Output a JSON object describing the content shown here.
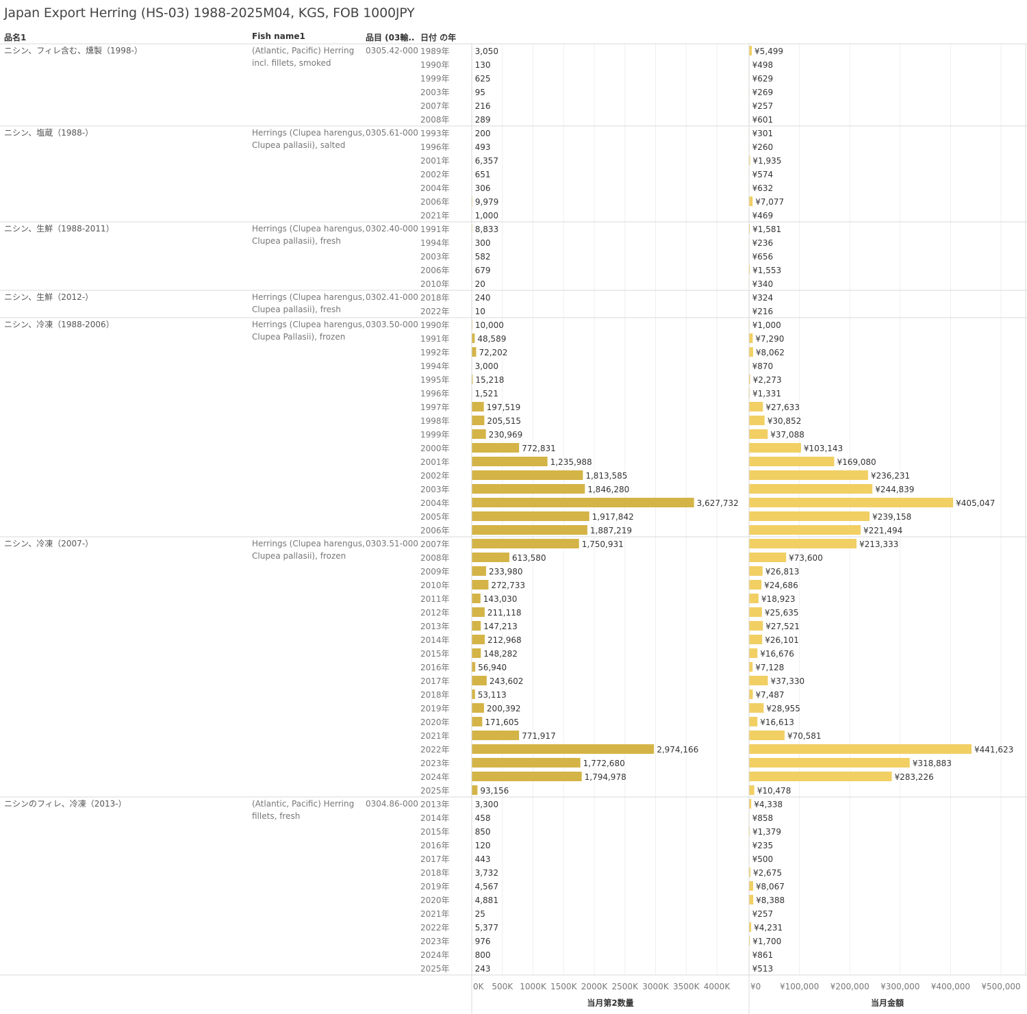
{
  "title": "Japan Export Herring (HS-03) 1988-2025M04, KGS, FOB 1000JPY",
  "headers": {
    "col1": "品名1",
    "col2": "Fish name1",
    "col3": "品目 (03輸..",
    "col4": "日付 の年"
  },
  "colors": {
    "qty_bar": "#d4b447",
    "val_bar": "#f1cf63",
    "grid": "#efefef",
    "divider": "#d9d9d9"
  },
  "chart_data": {
    "type": "bar",
    "orientation": "horizontal",
    "x_axis_qty": {
      "label": "当月第2数量",
      "ticks": [
        "0K",
        "500K",
        "1000K",
        "1500K",
        "2000K",
        "2500K",
        "3000K",
        "3500K",
        "4000K"
      ],
      "tick_values": [
        0,
        500000,
        1000000,
        1500000,
        2000000,
        2500000,
        3000000,
        3500000,
        4000000
      ]
    },
    "x_axis_val": {
      "label": "当月金額",
      "ticks": [
        "¥0",
        "¥100,000",
        "¥200,000",
        "¥300,000",
        "¥400,000",
        "¥500,000"
      ],
      "tick_values": [
        0,
        100000,
        200000,
        300000,
        400000,
        500000
      ]
    },
    "groups": [
      {
        "name_jp": "ニシン、フィレ含む、燻製（1998-）",
        "name_en": [
          "(Atlantic, Pacific) Herring",
          "incl. fillets, smoked"
        ],
        "code": "0305.42-000",
        "rows": [
          {
            "year": "1989年",
            "qty": 3050,
            "val": 5499
          },
          {
            "year": "1990年",
            "qty": 130,
            "val": 498
          },
          {
            "year": "1999年",
            "qty": 625,
            "val": 629
          },
          {
            "year": "2003年",
            "qty": 95,
            "val": 269
          },
          {
            "year": "2007年",
            "qty": 216,
            "val": 257
          },
          {
            "year": "2008年",
            "qty": 289,
            "val": 601
          }
        ]
      },
      {
        "name_jp": "ニシン、塩蔵（1988-）",
        "name_en": [
          "Herrings (Clupea harengus,",
          "Clupea pallasii), salted"
        ],
        "code": "0305.61-000",
        "rows": [
          {
            "year": "1993年",
            "qty": 200,
            "val": 301
          },
          {
            "year": "1996年",
            "qty": 493,
            "val": 260
          },
          {
            "year": "2001年",
            "qty": 6357,
            "val": 1935
          },
          {
            "year": "2002年",
            "qty": 651,
            "val": 574
          },
          {
            "year": "2004年",
            "qty": 306,
            "val": 632
          },
          {
            "year": "2006年",
            "qty": 9979,
            "val": 7077
          },
          {
            "year": "2021年",
            "qty": 1000,
            "val": 469
          }
        ]
      },
      {
        "name_jp": "ニシン、生鮮（1988-2011）",
        "name_en": [
          "Herrings (Clupea harengus,",
          "Clupea pallasii), fresh"
        ],
        "code": "0302.40-000",
        "rows": [
          {
            "year": "1991年",
            "qty": 8833,
            "val": 1581
          },
          {
            "year": "1994年",
            "qty": 300,
            "val": 236
          },
          {
            "year": "2003年",
            "qty": 582,
            "val": 656
          },
          {
            "year": "2006年",
            "qty": 679,
            "val": 1553
          },
          {
            "year": "2010年",
            "qty": 20,
            "val": 340
          }
        ]
      },
      {
        "name_jp": "ニシン、生鮮（2012-）",
        "name_en": [
          "Herrings (Clupea harengus,",
          "Clupea pallasii), fresh"
        ],
        "code": "0302.41-000",
        "rows": [
          {
            "year": "2018年",
            "qty": 240,
            "val": 324
          },
          {
            "year": "2022年",
            "qty": 10,
            "val": 216
          }
        ]
      },
      {
        "name_jp": "ニシン、冷凍（1988-2006）",
        "name_en": [
          "Herrings (Clupea harengus,",
          "Clupea Pallasii), frozen"
        ],
        "code": "0303.50-000",
        "rows": [
          {
            "year": "1990年",
            "qty": 10000,
            "val": 1000
          },
          {
            "year": "1991年",
            "qty": 48589,
            "val": 7290
          },
          {
            "year": "1992年",
            "qty": 72202,
            "val": 8062
          },
          {
            "year": "1994年",
            "qty": 3000,
            "val": 870
          },
          {
            "year": "1995年",
            "qty": 15218,
            "val": 2273
          },
          {
            "year": "1996年",
            "qty": 1521,
            "val": 1331
          },
          {
            "year": "1997年",
            "qty": 197519,
            "val": 27633
          },
          {
            "year": "1998年",
            "qty": 205515,
            "val": 30852
          },
          {
            "year": "1999年",
            "qty": 230969,
            "val": 37088
          },
          {
            "year": "2000年",
            "qty": 772831,
            "val": 103143
          },
          {
            "year": "2001年",
            "qty": 1235988,
            "val": 169080
          },
          {
            "year": "2002年",
            "qty": 1813585,
            "val": 236231
          },
          {
            "year": "2003年",
            "qty": 1846280,
            "val": 244839
          },
          {
            "year": "2004年",
            "qty": 3627732,
            "val": 405047
          },
          {
            "year": "2005年",
            "qty": 1917842,
            "val": 239158
          },
          {
            "year": "2006年",
            "qty": 1887219,
            "val": 221494
          }
        ]
      },
      {
        "name_jp": "ニシン、冷凍（2007-）",
        "name_en": [
          "Herrings (Clupea harengus,",
          "Clupea pallasii), frozen"
        ],
        "code": "0303.51-000",
        "rows": [
          {
            "year": "2007年",
            "qty": 1750931,
            "val": 213333
          },
          {
            "year": "2008年",
            "qty": 613580,
            "val": 73600
          },
          {
            "year": "2009年",
            "qty": 233980,
            "val": 26813
          },
          {
            "year": "2010年",
            "qty": 272733,
            "val": 24686
          },
          {
            "year": "2011年",
            "qty": 143030,
            "val": 18923
          },
          {
            "year": "2012年",
            "qty": 211118,
            "val": 25635
          },
          {
            "year": "2013年",
            "qty": 147213,
            "val": 27521
          },
          {
            "year": "2014年",
            "qty": 212968,
            "val": 26101
          },
          {
            "year": "2015年",
            "qty": 148282,
            "val": 16676
          },
          {
            "year": "2016年",
            "qty": 56940,
            "val": 7128
          },
          {
            "year": "2017年",
            "qty": 243602,
            "val": 37330
          },
          {
            "year": "2018年",
            "qty": 53113,
            "val": 7487
          },
          {
            "year": "2019年",
            "qty": 200392,
            "val": 28955
          },
          {
            "year": "2020年",
            "qty": 171605,
            "val": 16613
          },
          {
            "year": "2021年",
            "qty": 771917,
            "val": 70581
          },
          {
            "year": "2022年",
            "qty": 2974166,
            "val": 441623
          },
          {
            "year": "2023年",
            "qty": 1772680,
            "val": 318883
          },
          {
            "year": "2024年",
            "qty": 1794978,
            "val": 283226
          },
          {
            "year": "2025年",
            "qty": 93156,
            "val": 10478
          }
        ]
      },
      {
        "name_jp": "ニシンのフィレ、冷凍（2013-）",
        "name_en": [
          "(Atlantic, Pacific) Herring",
          "fillets, fresh"
        ],
        "code": "0304.86-000",
        "rows": [
          {
            "year": "2013年",
            "qty": 3300,
            "val": 4338
          },
          {
            "year": "2014年",
            "qty": 458,
            "val": 858
          },
          {
            "year": "2015年",
            "qty": 850,
            "val": 1379
          },
          {
            "year": "2016年",
            "qty": 120,
            "val": 235
          },
          {
            "year": "2017年",
            "qty": 443,
            "val": 500
          },
          {
            "year": "2018年",
            "qty": 3732,
            "val": 2675
          },
          {
            "year": "2019年",
            "qty": 4567,
            "val": 8067
          },
          {
            "year": "2020年",
            "qty": 4881,
            "val": 8388
          },
          {
            "year": "2021年",
            "qty": 25,
            "val": 257
          },
          {
            "year": "2022年",
            "qty": 5377,
            "val": 4231
          },
          {
            "year": "2023年",
            "qty": 976,
            "val": 1700
          },
          {
            "year": "2024年",
            "qty": 800,
            "val": 861
          },
          {
            "year": "2025年",
            "qty": 243,
            "val": 513
          }
        ]
      }
    ]
  }
}
